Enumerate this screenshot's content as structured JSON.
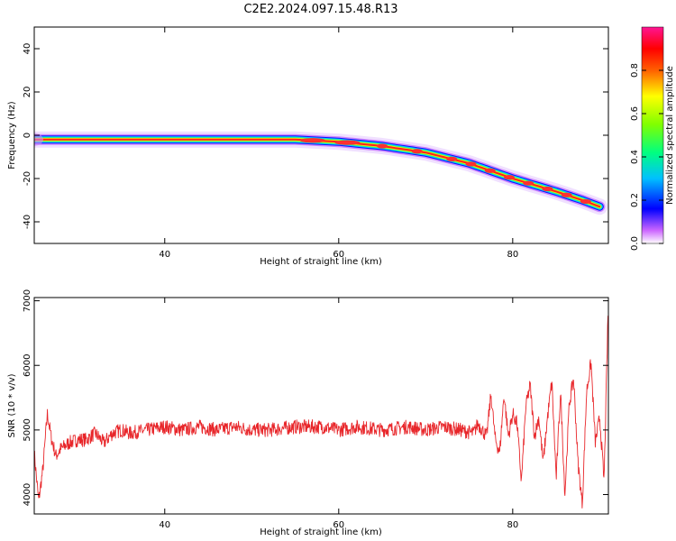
{
  "title": "C2E2.2024.097.15.48.R13",
  "colors": {
    "snr_line": "#e8262a",
    "axis": "#000000",
    "background": "#ffffff"
  },
  "chart_data": [
    {
      "type": "heatmap",
      "xlabel": "Height of straight line (km)",
      "ylabel": "Frequency (Hz)",
      "xlim": [
        25,
        91
      ],
      "ylim": [
        -50,
        50
      ],
      "xticks": [
        40,
        60,
        80
      ],
      "yticks": [
        -40,
        -20,
        0,
        20,
        40
      ],
      "colorbar": {
        "label": "Normalized spectral amplitude",
        "range": [
          0,
          1
        ],
        "ticks": [
          0.0,
          0.2,
          0.4,
          0.6,
          0.8
        ]
      },
      "ridge": {
        "x": [
          25,
          30,
          35,
          40,
          45,
          50,
          55,
          60,
          65,
          70,
          75,
          80,
          85,
          88,
          90
        ],
        "y": [
          -2,
          -2,
          -2,
          -2,
          -2,
          -2,
          -2,
          -3,
          -5,
          -8,
          -13,
          -20,
          -26,
          -30,
          -33
        ]
      }
    },
    {
      "type": "line",
      "xlabel": "Height of straight line (km)",
      "ylabel": "SNR (10 * v/v)",
      "xlim": [
        25,
        91
      ],
      "ylim": [
        3700,
        7050
      ],
      "xticks": [
        40,
        60,
        80
      ],
      "yticks": [
        4000,
        5000,
        6000,
        7000
      ],
      "series": [
        {
          "x": [
            25,
            25.5,
            26,
            26.5,
            27,
            27.5,
            28,
            29,
            30,
            31,
            32,
            33,
            34,
            35,
            36,
            38,
            40,
            42,
            44,
            46,
            48,
            50,
            52,
            55,
            58,
            60,
            62,
            65,
            68,
            70,
            72,
            74,
            75.5,
            76,
            77,
            77.5,
            78,
            78.5,
            79,
            79.5,
            80,
            80.5,
            81,
            81.5,
            82,
            82.5,
            83,
            83.5,
            84,
            84.5,
            85,
            85.5,
            86,
            86.5,
            87,
            87.5,
            88,
            88.5,
            89,
            89.5,
            90,
            90.5,
            91
          ],
          "y": [
            4650,
            3900,
            4400,
            5250,
            4850,
            4600,
            4700,
            4800,
            4850,
            4850,
            4950,
            4800,
            4950,
            5000,
            4950,
            5000,
            5050,
            5000,
            5050,
            5000,
            5050,
            5000,
            5000,
            5050,
            5050,
            5000,
            5050,
            5000,
            5050,
            5000,
            5050,
            5000,
            4950,
            5100,
            4900,
            5550,
            4850,
            4650,
            5550,
            4900,
            5250,
            5100,
            4200,
            5350,
            5700,
            4900,
            5200,
            4500,
            5200,
            5750,
            4250,
            5600,
            4000,
            5400,
            5800,
            4500,
            3850,
            5600,
            6050,
            4800,
            5200,
            4200,
            7050
          ]
        }
      ]
    }
  ]
}
